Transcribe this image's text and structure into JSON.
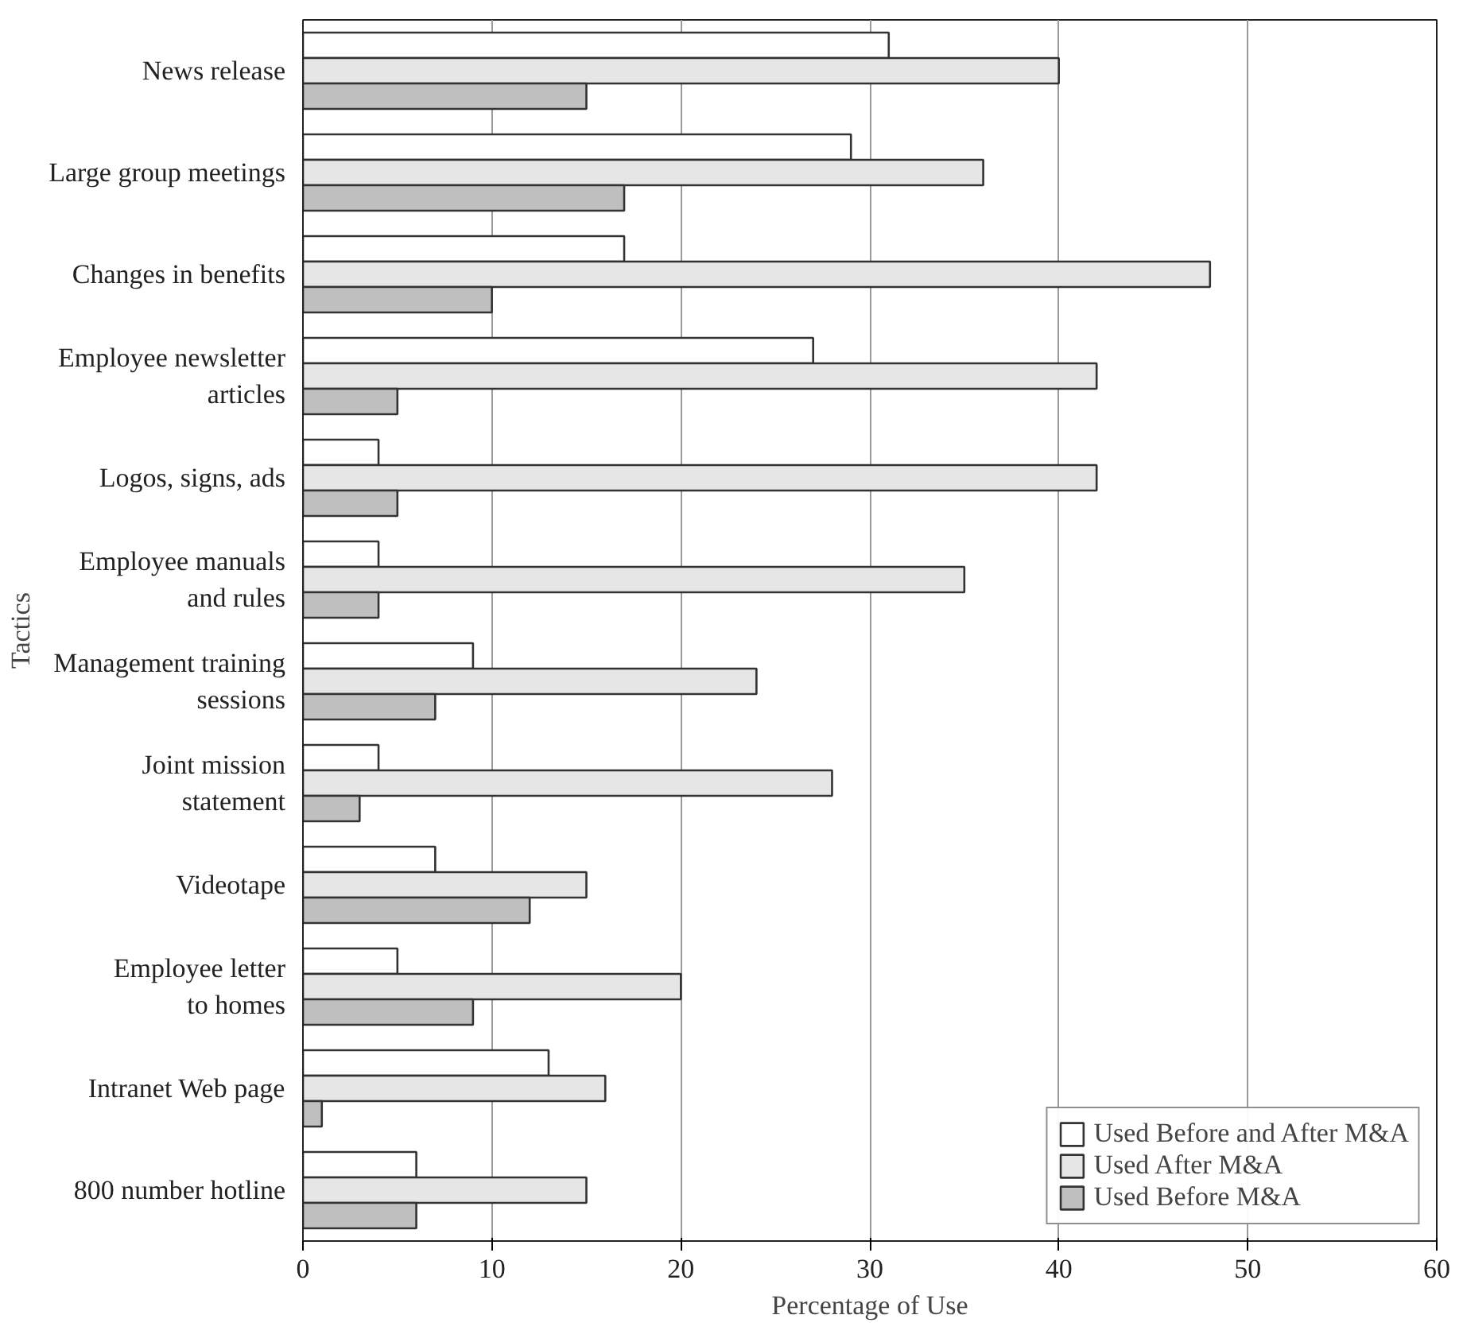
{
  "chart_data": {
    "type": "bar",
    "orientation": "horizontal",
    "xlabel": "Percentage of Use",
    "ylabel": "Tactics",
    "categories": [
      "News release",
      "Large group meetings",
      "Changes in benefits",
      "Employee newsletter\narticles",
      "Logos, signs, ads",
      "Employee manuals\nand rules",
      "Management training\nsessions",
      "Joint mission\nstatement",
      "Videotape",
      "Employee letter\nto homes",
      "Intranet Web page",
      "800 number hotline"
    ],
    "series": [
      {
        "name": "Used Before and After M&A",
        "color": "#ffffff",
        "values": [
          31,
          29,
          17,
          27,
          4,
          4,
          9,
          4,
          7,
          5,
          13,
          6
        ]
      },
      {
        "name": "Used After M&A",
        "color": "#e6e6e6",
        "values": [
          40,
          36,
          48,
          42,
          42,
          35,
          24,
          28,
          15,
          20,
          16,
          15
        ]
      },
      {
        "name": "Used Before M&A",
        "color": "#bfbfbf",
        "values": [
          15,
          17,
          10,
          5,
          5,
          4,
          7,
          3,
          12,
          9,
          1,
          6
        ]
      }
    ],
    "xlim": [
      0,
      60
    ],
    "xticks": [
      0,
      10,
      20,
      30,
      40,
      50,
      60
    ],
    "grid": "x",
    "legend": "bottom right"
  }
}
